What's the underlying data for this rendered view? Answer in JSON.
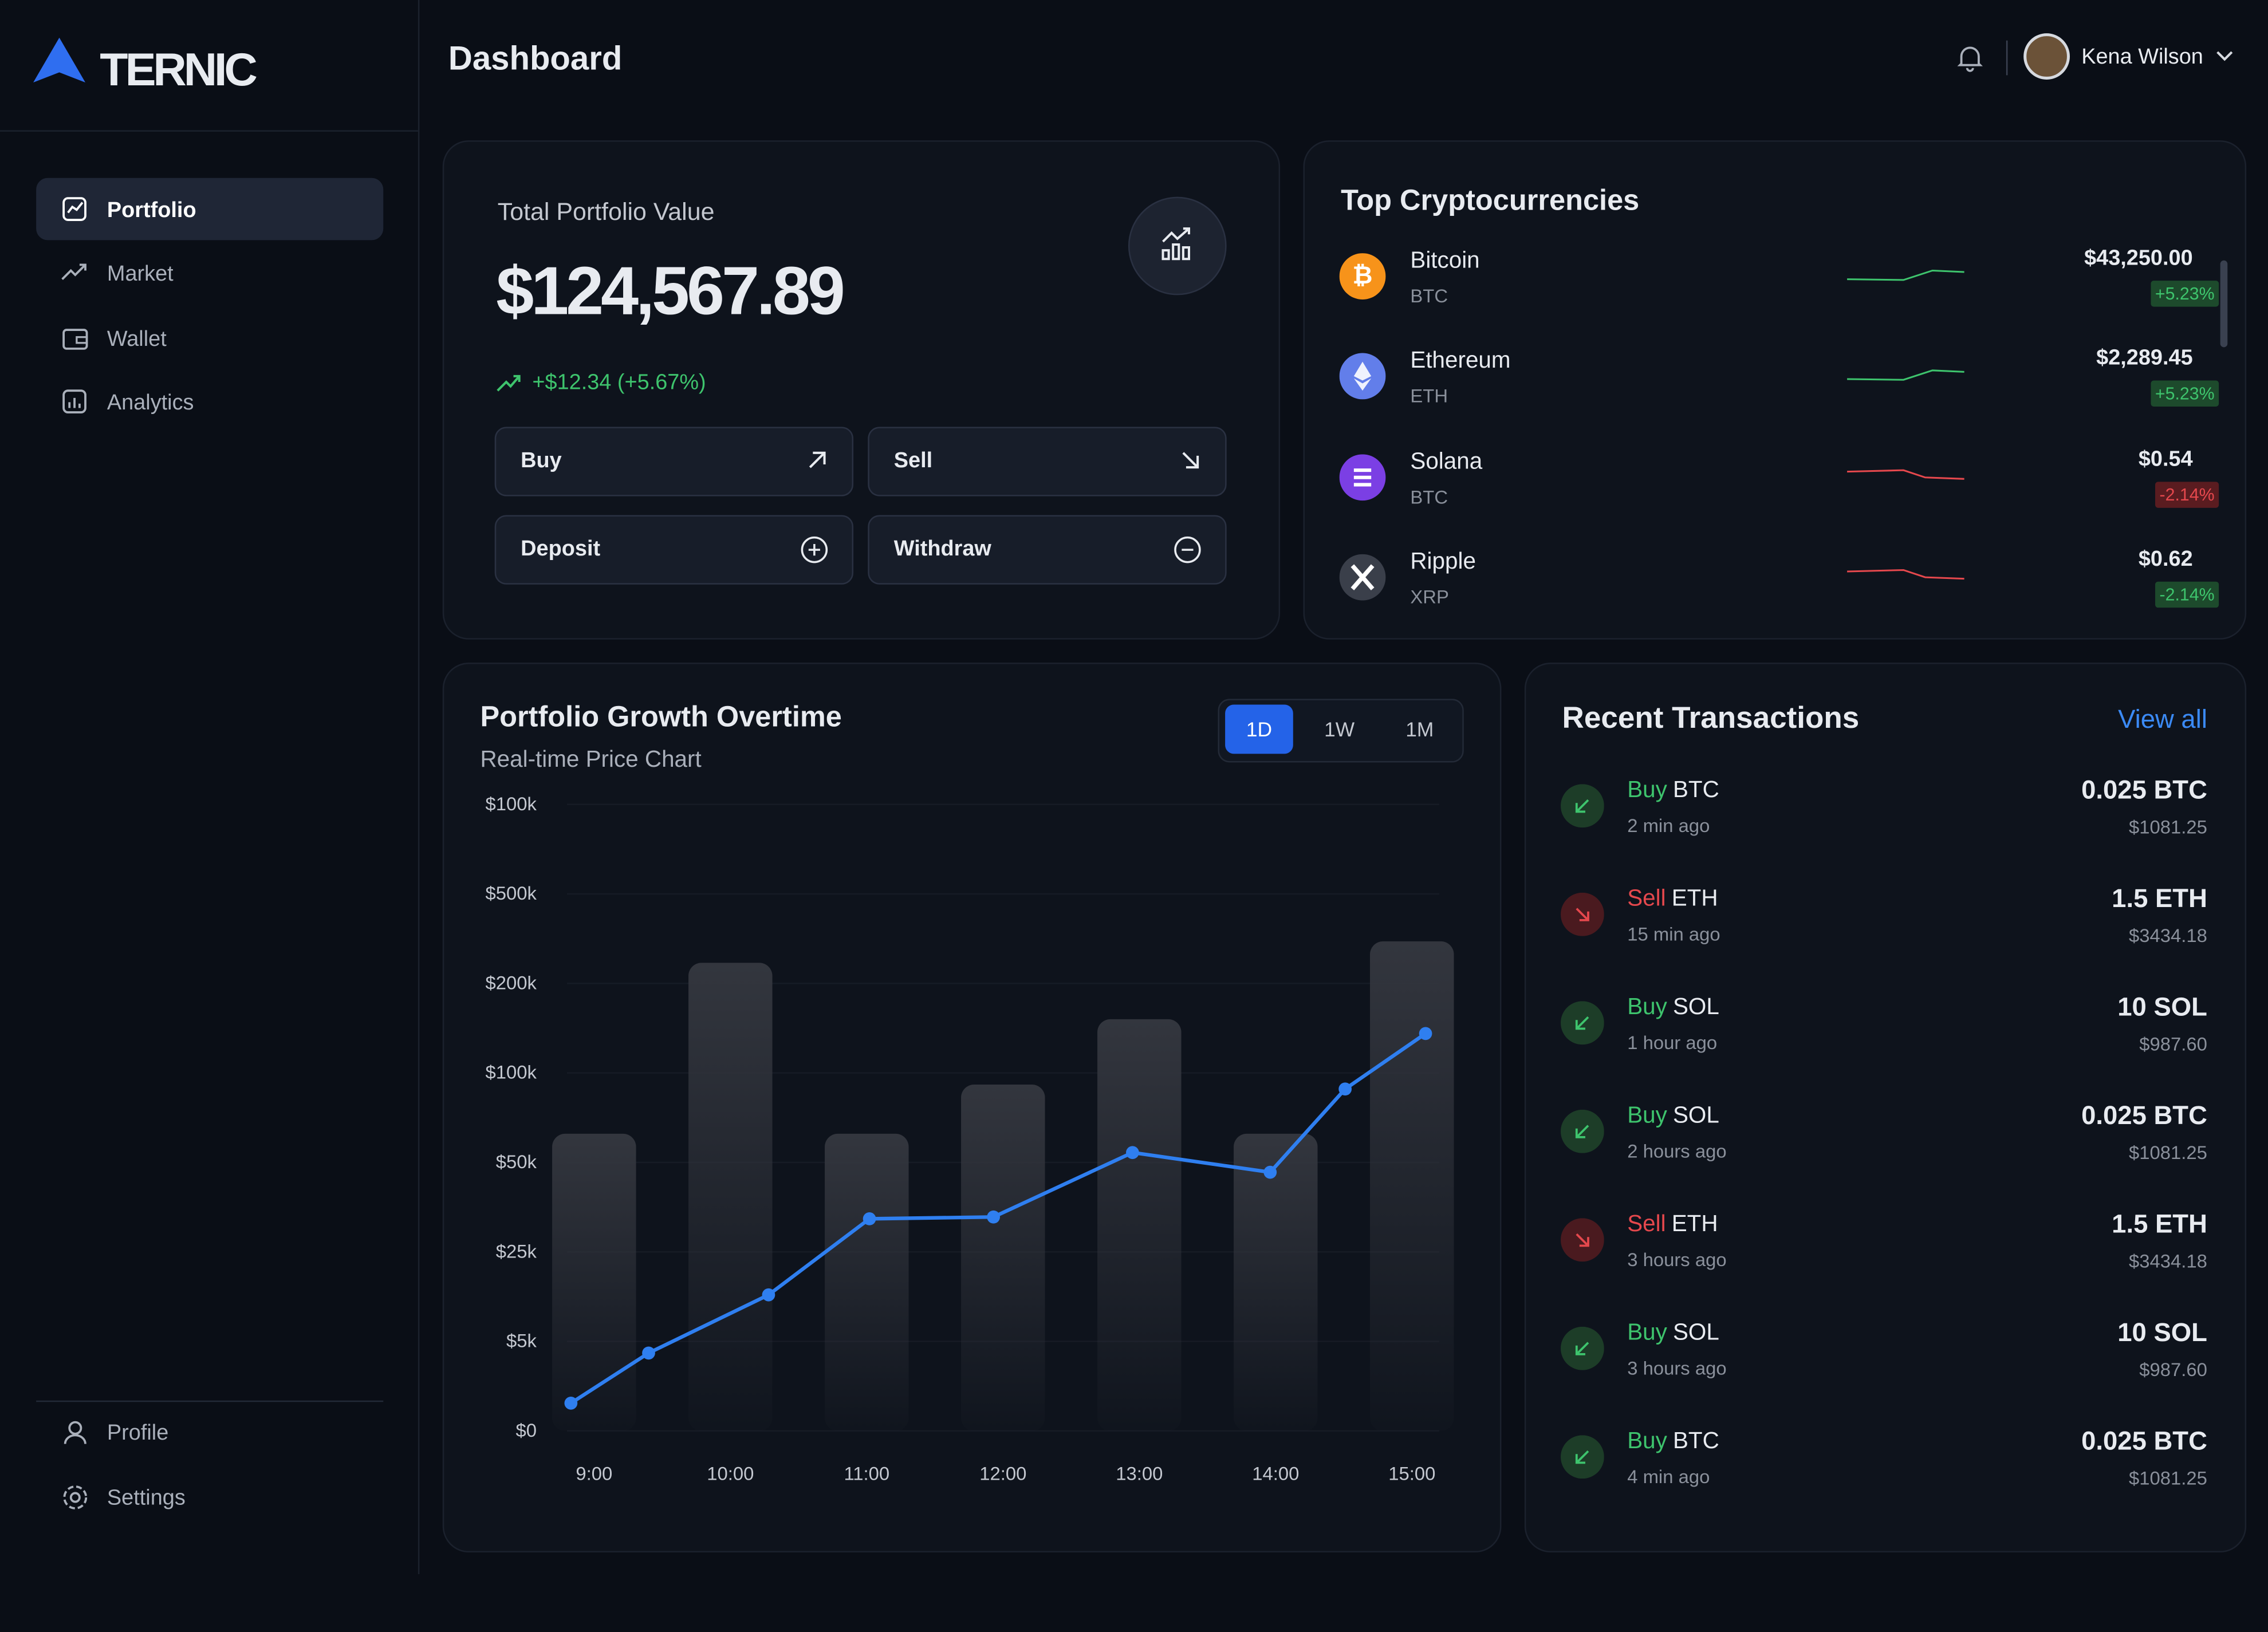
{
  "brand": "TERNIC",
  "nav": {
    "main": [
      "Portfolio",
      "Market",
      "Wallet",
      "Analytics"
    ],
    "bottom": [
      "Profile",
      "Settings"
    ]
  },
  "header": {
    "title": "Dashboard",
    "user": "Kena Wilson"
  },
  "portfolio": {
    "label": "Total Portfolio Value",
    "value": "$124,567.89",
    "change": "+$12.34 (+5.67%)",
    "actions": [
      "Buy",
      "Sell",
      "Deposit",
      "Withdraw"
    ]
  },
  "top_crypto": {
    "title": "Top Cryptocurrencies",
    "items": [
      {
        "name": "Bitcoin",
        "symbol": "BTC",
        "price": "$43,250.00",
        "change": "+5.23%"
      },
      {
        "name": "Ethereum",
        "symbol": "ETH",
        "price": "$2,289.45",
        "change": "+5.23%"
      },
      {
        "name": "Solana",
        "symbol": "BTC",
        "price": "$0.54",
        "change": "-2.14%"
      },
      {
        "name": "Ripple",
        "symbol": "XRP",
        "price": "$0.62",
        "change": "-2.14%"
      }
    ]
  },
  "chart_data": {
    "type": "combo",
    "title": "Portfolio Growth Overtime",
    "subtitle": "Real-time Price Chart",
    "ranges": [
      "1D",
      "1W",
      "1M"
    ],
    "y_labels": [
      "$0",
      "$5k",
      "$25k",
      "$50k",
      "$100k",
      "$200k",
      "$500k",
      "$100k"
    ],
    "ylim": [
      0,
      7
    ],
    "xlim": [
      8.78,
      15.2
    ],
    "xticks": [
      {
        "value": 9,
        "label": "9:00"
      },
      {
        "value": 10,
        "label": "10:00"
      },
      {
        "value": 11,
        "label": "11:00"
      },
      {
        "value": 12,
        "label": "12:00"
      },
      {
        "value": 13,
        "label": "13:00"
      },
      {
        "value": 14,
        "label": "14:00"
      },
      {
        "value": 15,
        "label": "15:00"
      }
    ],
    "bars": {
      "color": "#30333b",
      "x": [
        9,
        10,
        11,
        12,
        13,
        14,
        15
      ],
      "values": [
        3.32,
        5.23,
        3.32,
        3.87,
        4.6,
        3.32,
        5.47
      ]
    },
    "line": {
      "color": "#2f7ff0",
      "x": [
        8.83,
        9.4,
        10.28,
        11.02,
        11.93,
        12.95,
        13.96,
        14.51,
        15.1
      ],
      "values": [
        0.31,
        0.87,
        1.52,
        2.37,
        2.39,
        3.11,
        2.89,
        3.82,
        4.44
      ]
    }
  },
  "transactions": {
    "title": "Recent Transactions",
    "link": "View all",
    "items": [
      {
        "action": "Buy",
        "asset": "BTC",
        "time": "2 min ago",
        "amount": "0.025 BTC",
        "value": "$1081.25"
      },
      {
        "action": "Sell",
        "asset": "ETH",
        "time": "15 min ago",
        "amount": "1.5 ETH",
        "value": "$3434.18"
      },
      {
        "action": "Buy",
        "asset": "SOL",
        "time": "1 hour ago",
        "amount": "10 SOL",
        "value": "$987.60"
      },
      {
        "action": "Buy",
        "asset": "SOL",
        "time": "2 hours ago",
        "amount": "0.025 BTC",
        "value": "$1081.25"
      },
      {
        "action": "Sell",
        "asset": "ETH",
        "time": "3 hours ago",
        "amount": "1.5 ETH",
        "value": "$3434.18"
      },
      {
        "action": "Buy",
        "asset": "SOL",
        "time": "3 hours ago",
        "amount": "10 SOL",
        "value": "$987.60"
      },
      {
        "action": "Buy",
        "asset": "BTC",
        "time": "4 min ago",
        "amount": "0.025 BTC",
        "value": "$1081.25"
      }
    ]
  }
}
